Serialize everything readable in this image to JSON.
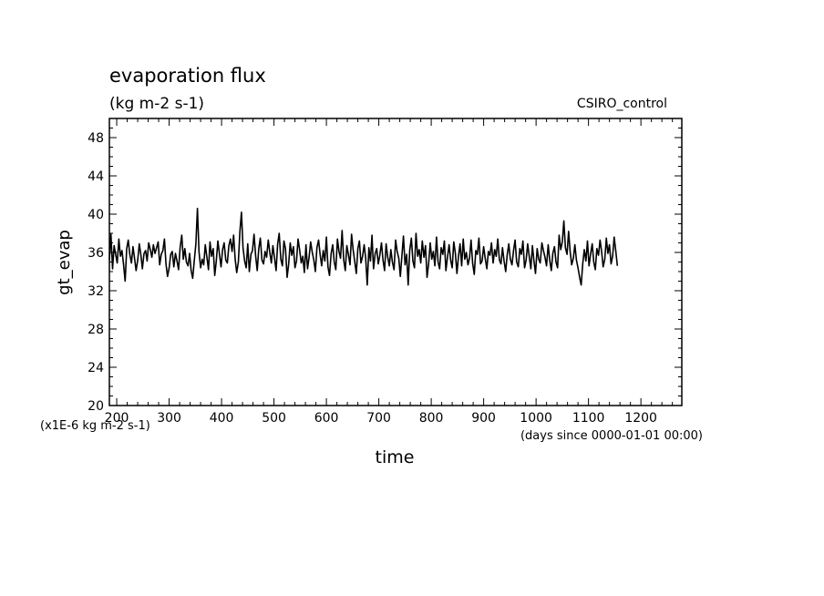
{
  "chart_data": {
    "type": "line",
    "title": "evaporation flux",
    "subtitle": "(kg m-2 s-1)",
    "dataset_label": "CSIRO_control",
    "xlabel": "time",
    "x_units": "(days since 0000-01-01 00:00)",
    "ylabel": "gt_evap",
    "y_scale_note": "(x1E-6 kg m-2 s-1)",
    "xlim": [
      186,
      1278
    ],
    "ylim": [
      20,
      50
    ],
    "x_ticks": [
      200,
      300,
      400,
      500,
      600,
      700,
      800,
      900,
      1000,
      1100,
      1200
    ],
    "y_ticks": [
      20,
      24,
      28,
      32,
      36,
      40,
      44,
      48
    ],
    "grid": false,
    "series": [
      {
        "x_start": 186,
        "x_step": 3,
        "y": [
          35.2,
          37.9,
          34.3,
          36.7,
          35.8,
          34.9,
          37.4,
          35.6,
          36.2,
          34.8,
          33.0,
          36.4,
          37.3,
          35.8,
          34.9,
          36.6,
          35.4,
          34.1,
          35.2,
          36.9,
          35.8,
          34.3,
          35.9,
          36.2,
          35.1,
          37.0,
          36.3,
          35.5,
          36.8,
          35.9,
          36.5,
          37.1,
          34.7,
          35.8,
          36.2,
          37.4,
          34.8,
          33.5,
          34.4,
          35.8,
          36.1,
          34.5,
          35.9,
          35.1,
          34.2,
          36.5,
          37.8,
          35.3,
          36.4,
          35.0,
          34.6,
          35.9,
          34.1,
          33.3,
          35.2,
          36.9,
          40.6,
          36.1,
          34.4,
          35.3,
          34.7,
          36.8,
          35.5,
          34.2,
          37.1,
          35.6,
          36.4,
          33.6,
          35.1,
          37.2,
          35.8,
          34.5,
          36.3,
          37.0,
          35.2,
          34.9,
          36.7,
          37.4,
          36.1,
          37.8,
          35.3,
          33.9,
          35.0,
          38.2,
          40.2,
          36.5,
          35.1,
          34.4,
          36.9,
          34.0,
          35.8,
          36.2,
          37.9,
          35.6,
          34.1,
          36.4,
          37.5,
          35.2,
          34.8,
          36.1,
          35.5,
          37.3,
          36.0,
          34.9,
          36.7,
          35.4,
          34.1,
          36.9,
          38.0,
          35.3,
          34.6,
          37.2,
          36.4,
          33.4,
          34.8,
          37.0,
          35.7,
          36.6,
          34.4,
          35.1,
          37.4,
          36.2,
          34.9,
          35.6,
          33.9,
          36.8,
          34.3,
          35.5,
          37.1,
          36.0,
          35.2,
          34.0,
          36.5,
          37.3,
          35.8,
          34.6,
          36.2,
          35.1,
          37.6,
          34.5,
          33.6,
          35.9,
          36.8,
          35.0,
          34.2,
          37.4,
          36.1,
          35.4,
          38.3,
          35.2,
          34.1,
          36.7,
          35.8,
          34.7,
          37.9,
          36.3,
          35.1,
          33.8,
          36.4,
          37.2,
          34.9,
          35.6,
          36.8,
          35.4,
          32.6,
          36.5,
          35.1,
          37.8,
          34.3,
          35.9,
          36.4,
          34.8,
          35.7,
          37.0,
          35.2,
          34.1,
          36.9,
          35.5,
          34.6,
          36.3,
          35.0,
          34.2,
          37.3,
          36.1,
          35.4,
          33.5,
          35.6,
          37.7,
          34.7,
          35.8,
          32.6,
          36.2,
          37.5,
          35.1,
          34.4,
          38.0,
          35.6,
          36.3,
          34.9,
          37.2,
          35.5,
          36.7,
          33.4,
          34.8,
          37.0,
          35.3,
          36.1,
          34.6,
          37.6,
          35.0,
          34.3,
          36.5,
          35.8,
          37.2,
          34.1,
          35.5,
          36.8,
          35.2,
          34.4,
          37.1,
          35.9,
          33.8,
          35.6,
          36.9,
          34.6,
          37.4,
          35.3,
          36.0,
          34.7,
          35.4,
          37.3,
          34.9,
          33.7,
          36.2,
          35.8,
          37.5,
          34.8,
          35.1,
          36.6,
          35.4,
          34.3,
          36.1,
          35.7,
          37.0,
          34.9,
          36.3,
          35.6,
          37.4,
          35.2,
          34.8,
          36.5,
          35.1,
          34.0,
          35.8,
          36.9,
          35.3,
          34.7,
          36.2,
          37.3,
          35.0,
          34.5,
          36.4,
          35.8,
          37.2,
          34.4,
          35.2,
          36.9,
          35.6,
          34.3,
          36.7,
          35.1,
          33.8,
          36.4,
          35.3,
          34.9,
          37.0,
          36.2,
          35.5,
          34.6,
          36.8,
          35.2,
          34.1,
          35.9,
          36.6,
          35.0,
          34.4,
          37.8,
          36.3,
          37.1,
          39.3,
          36.5,
          35.8,
          38.2,
          36.1,
          34.7,
          35.4,
          36.8,
          35.2,
          34.4,
          33.4,
          32.6,
          34.8,
          36.3,
          35.1,
          37.2,
          34.6,
          35.8,
          36.9,
          35.0,
          34.2,
          36.4,
          35.7,
          37.3,
          36.1,
          34.5,
          35.3,
          37.5,
          35.9,
          36.8,
          34.8,
          35.6,
          37.6,
          36.2,
          34.6
        ]
      }
    ]
  }
}
